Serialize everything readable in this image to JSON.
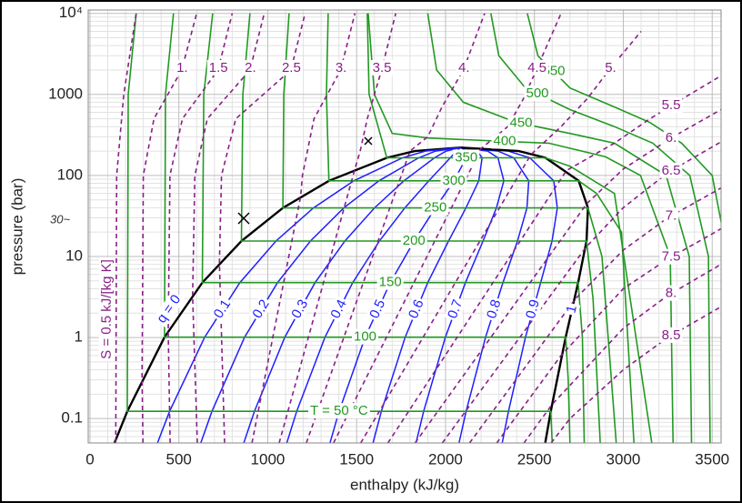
{
  "chart_data": {
    "type": "line",
    "xlabel": "enthalpy (kJ/kg)",
    "ylabel": "pressure (bar)",
    "xlim": [
      -10,
      3550
    ],
    "ylim": [
      0.05,
      11000
    ],
    "log_y": true,
    "grid": true,
    "xticks": [
      0,
      500,
      1000,
      1500,
      2000,
      2500,
      3000,
      3500
    ],
    "yticks": [
      0.1,
      1,
      10,
      100,
      1000,
      {
        "value": 10000,
        "label": "10⁴"
      }
    ],
    "xminor": [
      100,
      200,
      300,
      400,
      600,
      700,
      800,
      900,
      1100,
      1200,
      1300,
      1400,
      1600,
      1700,
      1800,
      1900,
      2100,
      2200,
      2300,
      2400,
      2600,
      2700,
      2800,
      2900,
      3100,
      3200,
      3300,
      3400
    ],
    "yminor": [
      0.05,
      0.06,
      0.07,
      0.08,
      0.09,
      0.2,
      0.3,
      0.4,
      0.5,
      0.6,
      0.7,
      0.8,
      0.9,
      2,
      3,
      4,
      5,
      6,
      7,
      8,
      9,
      20,
      30,
      40,
      50,
      60,
      70,
      80,
      90,
      200,
      300,
      400,
      500,
      600,
      700,
      800,
      900,
      2000,
      3000,
      4000,
      5000,
      6000,
      7000,
      8000,
      9000
    ],
    "isotherms": {
      "color": "#229922",
      "series": [
        {
          "name": "T = 50 °C",
          "x": [
            260,
            215,
            210,
            2592,
            2600
          ],
          "y": [
            10000,
            1000,
            0.123,
            0.123,
            0.05
          ]
        },
        {
          "name": "100",
          "x": [
            470,
            425,
            419,
            2676,
            2690,
            2700
          ],
          "y": [
            10000,
            1000,
            1.01,
            1.01,
            0.3,
            0.05
          ]
        },
        {
          "name": "150",
          "x": [
            690,
            640,
            632,
            2746,
            2770,
            2780
          ],
          "y": [
            10000,
            1000,
            4.76,
            4.76,
            1,
            0.05
          ]
        },
        {
          "name": "200",
          "x": [
            900,
            860,
            852,
            2793,
            2830,
            2870
          ],
          "y": [
            10000,
            1000,
            15.5,
            15.5,
            3,
            0.05
          ]
        },
        {
          "name": "250",
          "x": [
            1120,
            1090,
            1085,
            2801,
            2880,
            2960
          ],
          "y": [
            10000,
            1000,
            39.7,
            39.7,
            10,
            0.05
          ]
        },
        {
          "name": "300",
          "x": [
            1340,
            1330,
            1344,
            2749,
            2850,
            2990,
            3060
          ],
          "y": [
            10000,
            1000,
            85.8,
            85.8,
            60,
            20,
            0.05
          ]
        },
        {
          "name": "350",
          "x": [
            1560,
            1570,
            1670,
            2563,
            2700,
            2950,
            3160
          ],
          "y": [
            10000,
            1000,
            165,
            165,
            130,
            60,
            0.05
          ]
        },
        {
          "name": "400",
          "x": [
            1565,
            1600,
            1700,
            1900,
            2300,
            2580,
            2900,
            3097,
            3264,
            3280
          ],
          "y": [
            10000,
            1000,
            330,
            290,
            265,
            250,
            170,
            100,
            10,
            0.05
          ]
        },
        {
          "name": "450",
          "x": [
            1900,
            1950,
            2100,
            2400,
            2700,
            2950,
            3241,
            3371,
            3384
          ],
          "y": [
            10000,
            2000,
            800,
            450,
            330,
            250,
            100,
            10,
            0.05
          ]
        },
        {
          "name": "500",
          "x": [
            2255,
            2300,
            2450,
            2700,
            2950,
            3166,
            3374,
            3479,
            3488
          ],
          "y": [
            10000,
            3000,
            1200,
            650,
            400,
            250,
            100,
            10,
            0.05
          ]
        },
        {
          "name": "550",
          "x": [
            2460,
            2520,
            2700,
            2950,
            3150,
            3328,
            3500,
            3588
          ],
          "y": [
            10000,
            3000,
            1200,
            700,
            450,
            250,
            100,
            10
          ]
        }
      ]
    },
    "isentropes": {
      "color": "#881f88",
      "dashed": true,
      "series": [
        {
          "name": "S = 0.5 kJ/[kg K]",
          "x": [
            145,
            150,
            190,
            260
          ],
          "y": [
            0.05,
            100,
            1000,
            10000
          ]
        },
        {
          "name": "1.",
          "x": [
            298,
            293,
            300,
            360,
            516,
            600
          ],
          "y": [
            0.05,
            0.31,
            100,
            500,
            2000,
            10000
          ]
        },
        {
          "name": "1.5",
          "x": [
            451,
            440,
            450,
            520,
            720,
            800
          ],
          "y": [
            0.05,
            1.2,
            100,
            500,
            2000,
            10000
          ]
        },
        {
          "name": "2.",
          "x": [
            604,
            577,
            590,
            660,
            900,
            980
          ],
          "y": [
            0.05,
            3.3,
            100,
            500,
            2000,
            10000
          ]
        },
        {
          "name": "2.5",
          "x": [
            757,
            728,
            740,
            820,
            1130,
            1210
          ],
          "y": [
            0.05,
            8.3,
            100,
            500,
            2000,
            10000
          ]
        },
        {
          "name": "3.",
          "x": [
            911,
            1185,
            1195,
            1260,
            1410,
            1490
          ],
          "y": [
            0.05,
            55,
            100,
            500,
            2000,
            10000
          ]
        },
        {
          "name": "3.5",
          "x": [
            1064,
            1490,
            1520,
            1560,
            1640,
            1720
          ],
          "y": [
            0.05,
            120,
            200,
            500,
            2000,
            10000
          ]
        },
        {
          "name": "4.",
          "x": [
            1217,
            1800,
            1900,
            1980,
            2100,
            2220
          ],
          "y": [
            0.05,
            200,
            300,
            700,
            2000,
            10000
          ]
        },
        {
          "name": "4.5",
          "x": [
            1370,
            2200,
            2350,
            2440,
            2510,
            2650
          ],
          "y": [
            0.05,
            215,
            400,
            900,
            2000,
            10000
          ]
        },
        {
          "name": "5.",
          "x": [
            1523,
            2480,
            2650,
            2800,
            2920,
            3100
          ],
          "y": [
            0.05,
            180,
            400,
            900,
            2000,
            6000
          ]
        },
        {
          "name": "5.5",
          "x": [
            1676,
            2680,
            2950,
            3150,
            3300,
            3550
          ],
          "y": [
            0.05,
            115,
            250,
            500,
            800,
            1700
          ]
        },
        {
          "name": "6.",
          "x": [
            1829,
            2795,
            3000,
            3280,
            3550
          ],
          "y": [
            0.05,
            45,
            120,
            300,
            650
          ]
        },
        {
          "name": "6.5",
          "x": [
            1982,
            2790,
            3000,
            3250,
            3550
          ],
          "y": [
            0.05,
            13,
            40,
            108,
            260
          ]
        },
        {
          "name": "7.",
          "x": [
            2135,
            2730,
            3000,
            3250,
            3550
          ],
          "y": [
            0.05,
            3,
            12,
            30,
            70
          ]
        },
        {
          "name": "7.5",
          "x": [
            2288,
            2650,
            3000,
            3250,
            3550
          ],
          "y": [
            0.05,
            0.6,
            4,
            9.3,
            22
          ]
        },
        {
          "name": "8.",
          "x": [
            2441,
            2600,
            3000,
            3250,
            3550
          ],
          "y": [
            0.05,
            0.15,
            1.3,
            3.3,
            8
          ]
        },
        {
          "name": "8.5",
          "x": [
            2594,
            2700,
            3000,
            3250,
            3550
          ],
          "y": [
            0.05,
            0.1,
            0.4,
            1,
            2.4
          ]
        }
      ]
    },
    "quality": {
      "color": "#1f1fff",
      "saturation_color": "#000000",
      "pressures": [
        221,
        200,
        165,
        85.8,
        39.7,
        15.5,
        4.76,
        1.01,
        0.123,
        0.05
      ],
      "series": [
        {
          "name": "q = 0",
          "saturation": true,
          "x": [
            2085,
            1827,
            1670,
            1344,
            1085,
            852,
            632,
            419,
            210,
            138
          ]
        },
        {
          "name": "0.1",
          "x": [
            2085,
            1886,
            1759,
            1484,
            1257,
            1046,
            843,
            645,
            448,
            380
          ]
        },
        {
          "name": "0.2",
          "x": [
            2085,
            1944,
            1849,
            1625,
            1428,
            1240,
            1055,
            870,
            686,
            623
          ]
        },
        {
          "name": "0.3",
          "x": [
            2085,
            2003,
            1938,
            1766,
            1600,
            1434,
            1266,
            1096,
            925,
            865
          ]
        },
        {
          "name": "0.4",
          "x": [
            2085,
            2061,
            2027,
            1906,
            1771,
            1628,
            1478,
            1322,
            1163,
            1107
          ]
        },
        {
          "name": "0.5",
          "x": [
            2085,
            2120,
            2117,
            2047,
            1943,
            1823,
            1689,
            1548,
            1401,
            1350
          ]
        },
        {
          "name": "0.6",
          "x": [
            2085,
            2178,
            2206,
            2187,
            2115,
            2017,
            1900,
            1773,
            1639,
            1592
          ]
        },
        {
          "name": "0.7",
          "x": [
            2085,
            2237,
            2295,
            2328,
            2286,
            2211,
            2112,
            1999,
            1877,
            1834
          ]
        },
        {
          "name": "0.8",
          "x": [
            2085,
            2295,
            2384,
            2468,
            2458,
            2405,
            2323,
            2225,
            2116,
            2076
          ]
        },
        {
          "name": "0.9",
          "x": [
            2085,
            2354,
            2474,
            2609,
            2629,
            2599,
            2535,
            2450,
            2354,
            2319
          ]
        },
        {
          "name": "1",
          "saturation": true,
          "x": [
            2085,
            2412,
            2563,
            2749,
            2801,
            2793,
            2746,
            2676,
            2592,
            2561
          ]
        }
      ]
    },
    "annotation": "30~"
  }
}
